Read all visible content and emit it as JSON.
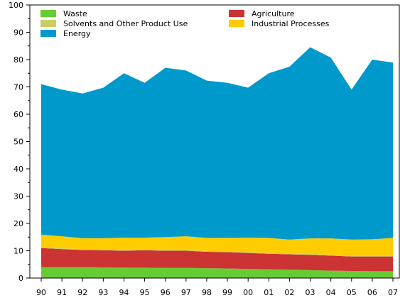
{
  "chart_data": {
    "type": "area",
    "stacked": true,
    "categories": [
      "90",
      "91",
      "92",
      "93",
      "94",
      "95",
      "96",
      "97",
      "98",
      "99",
      "00",
      "01",
      "02",
      "03",
      "04",
      "05",
      "06",
      "07"
    ],
    "ylim": [
      0,
      100
    ],
    "yticks": [
      0,
      10,
      20,
      30,
      40,
      50,
      60,
      70,
      80,
      90,
      100
    ],
    "grid": false,
    "legend_placement": "top",
    "series": [
      {
        "name": "Waste",
        "color": "#66cc33",
        "values": [
          4.0,
          4.0,
          4.0,
          3.9,
          3.8,
          3.8,
          3.7,
          3.7,
          3.6,
          3.5,
          3.3,
          3.2,
          3.1,
          2.9,
          2.7,
          2.6,
          2.5,
          2.5
        ]
      },
      {
        "name": "Agriculture",
        "color": "#cc3333",
        "values": [
          7.0,
          6.6,
          6.3,
          6.3,
          6.2,
          6.4,
          6.3,
          6.3,
          6.0,
          6.0,
          5.9,
          5.7,
          5.6,
          5.6,
          5.5,
          5.3,
          5.4,
          5.4
        ]
      },
      {
        "name": "Solvents and Other Product Use",
        "color": "#cccc66",
        "values": [
          0.3,
          0.3,
          0.3,
          0.3,
          0.3,
          0.3,
          0.3,
          0.3,
          0.3,
          0.3,
          0.3,
          0.3,
          0.3,
          0.3,
          0.3,
          0.3,
          0.3,
          0.3
        ]
      },
      {
        "name": "Industrial Processes",
        "color": "#ffcc00",
        "values": [
          4.6,
          4.4,
          4.0,
          4.1,
          4.5,
          4.3,
          4.7,
          5.0,
          4.8,
          4.9,
          5.3,
          5.5,
          5.1,
          5.7,
          6.0,
          5.9,
          6.0,
          6.5
        ]
      },
      {
        "name": "Energy",
        "color": "#0099cc",
        "values": [
          55.1,
          53.7,
          53.0,
          55.1,
          60.2,
          56.7,
          62.0,
          60.7,
          57.6,
          56.8,
          54.9,
          60.3,
          63.3,
          70.0,
          66.2,
          54.9,
          65.8,
          64.2
        ]
      }
    ],
    "legend_order": [
      "Waste",
      "Agriculture",
      "Solvents and Other Product Use",
      "Industrial Processes",
      "Energy"
    ]
  }
}
